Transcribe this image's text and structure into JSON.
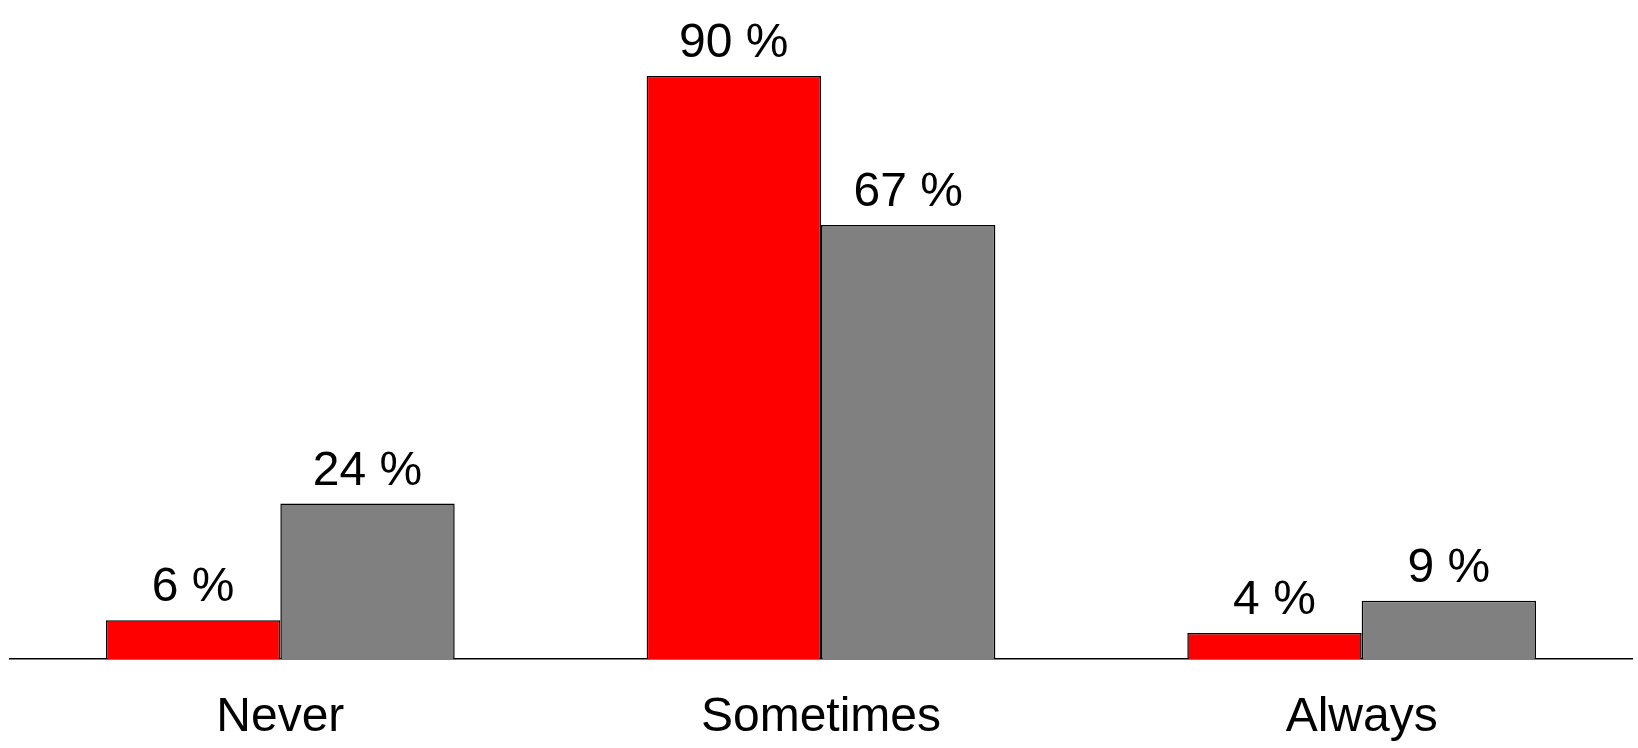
{
  "chart_data": {
    "type": "bar",
    "categories": [
      "Never",
      "Sometimes",
      "Always"
    ],
    "series": [
      {
        "color": "#ff0000",
        "values": [
          6,
          90,
          4
        ],
        "value_labels": [
          "6 %",
          "90 %",
          "4 %"
        ]
      },
      {
        "color": "#808080",
        "values": [
          24,
          67,
          9
        ],
        "value_labels": [
          "24 %",
          "67 %",
          "9 %"
        ]
      }
    ],
    "tick_labels": "x",
    "grid": false,
    "legend": false
  }
}
